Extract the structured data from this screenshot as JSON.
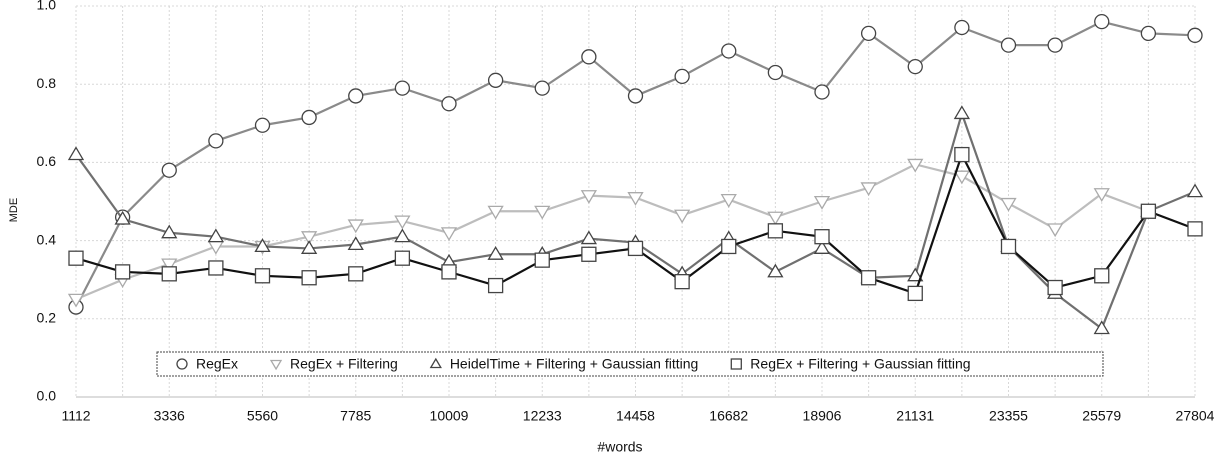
{
  "chart_data": {
    "type": "line",
    "x_label": "#words",
    "y_label": "MDE",
    "categories": [
      "1112",
      null,
      "3336",
      null,
      "5560",
      null,
      "7785",
      null,
      "10009",
      null,
      "12233",
      null,
      "14458",
      null,
      "16682",
      null,
      "18906",
      null,
      "21131",
      null,
      "23355",
      null,
      "25579",
      null,
      "27804"
    ],
    "ylim": [
      0,
      1
    ],
    "yticks": [
      {
        "value": 0,
        "label": "0.0"
      },
      0.2,
      0.4,
      0.6,
      0.8,
      {
        "value": 1,
        "label": "1.0"
      }
    ],
    "grid": true,
    "legend": "bottom",
    "series": [
      {
        "name": "RegEx",
        "color": "#8a8a8a",
        "marker": "circle",
        "values": [
          0.23,
          0.46,
          0.58,
          0.655,
          0.695,
          0.715,
          0.77,
          0.79,
          0.75,
          0.81,
          0.79,
          0.87,
          0.77,
          0.82,
          0.885,
          0.83,
          0.78,
          0.93,
          0.845,
          0.945,
          0.9,
          0.9,
          0.96,
          0.93,
          0.925
        ]
      },
      {
        "name": "RegEx + Filtering",
        "color": "#bdbdbd",
        "marker": "triangle-down",
        "values": [
          0.25,
          0.3,
          0.34,
          0.385,
          0.385,
          0.41,
          0.44,
          0.45,
          0.42,
          0.475,
          0.475,
          0.515,
          0.51,
          0.465,
          0.505,
          0.46,
          0.5,
          0.535,
          0.595,
          0.565,
          0.495,
          0.43,
          0.52,
          0.475,
          0.43
        ]
      },
      {
        "name": "HeidelTime + Filtering + Gaussian fitting",
        "color": "#707070",
        "marker": "triangle-up",
        "values": [
          0.62,
          0.455,
          0.42,
          0.41,
          0.385,
          0.38,
          0.39,
          0.41,
          0.345,
          0.365,
          0.365,
          0.405,
          0.395,
          0.315,
          0.405,
          0.32,
          0.38,
          0.305,
          0.31,
          0.725,
          0.385,
          0.265,
          0.175,
          0.475,
          0.525
        ]
      },
      {
        "name": "RegEx + Filtering + Gaussian fitting",
        "color": "#111111",
        "marker": "square",
        "values": [
          0.355,
          0.32,
          0.315,
          0.33,
          0.31,
          0.305,
          0.315,
          0.355,
          0.32,
          0.285,
          0.35,
          0.365,
          0.38,
          0.295,
          0.385,
          0.425,
          0.41,
          0.305,
          0.265,
          0.62,
          0.385,
          0.28,
          0.31,
          0.475,
          0.43
        ]
      }
    ]
  }
}
